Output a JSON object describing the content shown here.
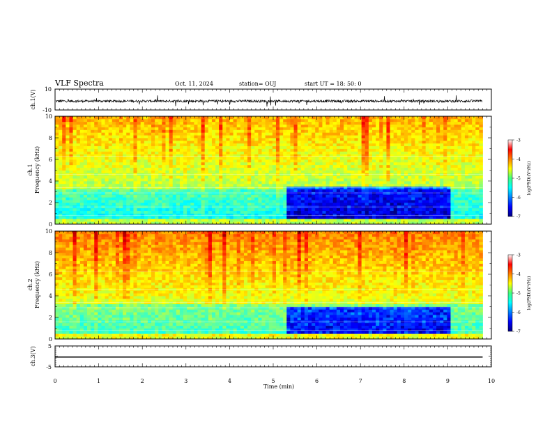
{
  "header": {
    "title": "VLF Spectra",
    "date": "Oct. 11, 2024",
    "station": "station= OUJ",
    "start": "start  UT  =   18: 50: 0"
  },
  "chart_data": [
    {
      "type": "line",
      "panel": "ch1-waveform",
      "ylabel": "ch.1(V)",
      "yticks": [
        "10",
        "-10"
      ],
      "ylim": [
        -10,
        10
      ],
      "x": [
        0,
        10
      ],
      "series": [
        {
          "values": "noise"
        }
      ]
    },
    {
      "type": "heatmap",
      "panel": "ch1-spectrogram",
      "ylabel_top": "ch.1",
      "ylabel": "Frequency (kHz)",
      "ylim": [
        0,
        10
      ],
      "yticks": [
        "0",
        "2",
        "4",
        "6",
        "8",
        "10"
      ],
      "xlim": [
        0,
        10
      ],
      "data_end_min": 9.8,
      "quiet_region": {
        "x_start_min": 5.25,
        "x_end_min": 9.0,
        "freq_max_khz": 3.5
      },
      "colorbar": {
        "label": "log(PSD)(V²/Hz)",
        "ticks": [
          "-3",
          "-4",
          "-5",
          "-6",
          "-7"
        ],
        "range": [
          -7,
          -3
        ]
      }
    },
    {
      "type": "heatmap",
      "panel": "ch2-spectrogram",
      "ylabel_top": "ch.2",
      "ylabel": "Frequency (kHz)",
      "ylim": [
        0,
        10
      ],
      "yticks": [
        "0",
        "2",
        "4",
        "6",
        "8",
        "10"
      ],
      "xlim": [
        0,
        10
      ],
      "data_end_min": 9.8,
      "quiet_region": {
        "x_start_min": 5.3,
        "x_end_min": 9.0,
        "freq_max_khz": 3.0
      },
      "colorbar": {
        "label": "log(PSD)(V²/Hz)",
        "ticks": [
          "-3",
          "-4",
          "-5",
          "-6",
          "-7"
        ],
        "range": [
          -7,
          -3
        ]
      }
    },
    {
      "type": "line",
      "panel": "ch3-waveform",
      "ylabel": "ch.3(V)",
      "yticks": [
        "5",
        "-5"
      ],
      "ylim": [
        -5,
        5
      ],
      "x": [
        0,
        10
      ],
      "series": [
        {
          "values": "flat",
          "level": -0.3
        }
      ]
    }
  ],
  "xaxis": {
    "label": "Time  (min)",
    "ticks": [
      "0",
      "1",
      "2",
      "3",
      "4",
      "5",
      "6",
      "7",
      "8",
      "9",
      "10"
    ],
    "range": [
      0,
      10
    ]
  }
}
